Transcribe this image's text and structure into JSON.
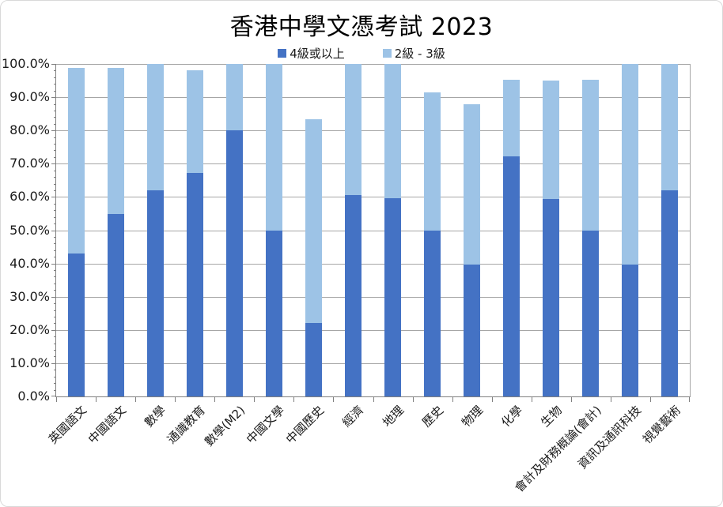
{
  "title": "香港中學文憑考試 2023",
  "legend": [
    {
      "label": "4級或以上",
      "color": "#4472C4"
    },
    {
      "label": "2級 - 3級",
      "color": "#9DC3E6"
    }
  ],
  "chart_data": {
    "type": "bar",
    "stacked": true,
    "title": "香港中學文憑考試 2023",
    "categories": [
      "英國語文",
      "中國語文",
      "數學",
      "通識教育",
      "數學(M2)",
      "中國文學",
      "中國歷史",
      "經濟",
      "地理",
      "歷史",
      "物理",
      "化學",
      "生物",
      "會計及財務概論(會計)",
      "資訊及通訊科技",
      "視覺藝術"
    ],
    "series": [
      {
        "name": "4級或以上",
        "color": "#4472C4",
        "values": [
          43.0,
          54.8,
          61.9,
          67.3,
          80.0,
          49.9,
          22.0,
          60.6,
          59.7,
          49.8,
          39.7,
          72.3,
          59.4,
          49.8,
          39.7,
          62.0
        ]
      },
      {
        "name": "2級 - 3級",
        "color": "#9DC3E6",
        "values": [
          55.9,
          44.1,
          38.1,
          30.7,
          20.0,
          50.1,
          61.3,
          39.4,
          40.3,
          41.6,
          48.2,
          23.0,
          35.7,
          45.5,
          60.3,
          38.0
        ]
      }
    ],
    "totals": [
      98.9,
      98.9,
      100.0,
      98.0,
      100.0,
      100.0,
      83.3,
      100.0,
      100.0,
      91.4,
      87.9,
      95.3,
      95.1,
      95.3,
      100.0,
      100.0
    ],
    "xlabel": "",
    "ylabel": "",
    "ylim": [
      0,
      100
    ],
    "y_ticks": [
      "0.0%",
      "10.0%",
      "20.0%",
      "30.0%",
      "40.0%",
      "50.0%",
      "60.0%",
      "70.0%",
      "80.0%",
      "90.0%",
      "100.0%"
    ],
    "grid": true,
    "legend_position": "top"
  },
  "colors": {
    "grid": "#A6A6A6",
    "axis": "#808080",
    "text": "#1a1a1a",
    "chart_border": "#D9D9D9"
  }
}
